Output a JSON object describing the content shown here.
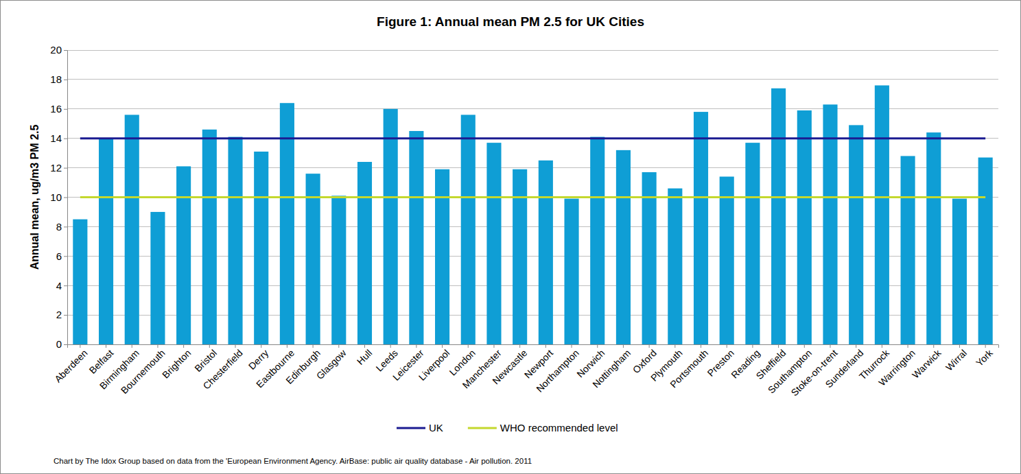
{
  "chart_data": {
    "type": "bar",
    "title": "Figure 1: Annual mean PM 2.5 for UK Cities",
    "y_label": "Annual mean, ug/m3 PM 2.5",
    "source": "Chart by The Idox Group based on data from the 'European Environment Agency. AirBase: public air quality database - Air pollution. 2011",
    "categories": [
      "Aberdeen",
      "Belfast",
      "Birmingham",
      "Bournemouth",
      "Brighton",
      "Bristol",
      "Chesterfield",
      "Derry",
      "Eastbourne",
      "Edinburgh",
      "Glasgow",
      "Hull",
      "Leeds",
      "Leicester",
      "Liverpool",
      "London",
      "Manchester",
      "Newcastle",
      "Newport",
      "Northampton",
      "Norwich",
      "Nottingham",
      "Oxford",
      "Plymouth",
      "Portsmouth",
      "Preston",
      "Reading",
      "Sheffield",
      "Southampton",
      "Stoke-on-trent",
      "Sunderland",
      "Thurrock",
      "Warrington",
      "Warwick",
      "Wirral",
      "York"
    ],
    "values": [
      8.5,
      14.0,
      15.6,
      9.0,
      12.1,
      14.6,
      14.1,
      13.1,
      16.4,
      11.6,
      10.1,
      12.4,
      16.0,
      14.5,
      11.9,
      15.6,
      13.7,
      11.9,
      12.5,
      9.9,
      14.1,
      13.2,
      11.7,
      10.6,
      15.8,
      11.4,
      13.7,
      17.4,
      15.9,
      16.3,
      14.9,
      17.6,
      12.8,
      14.4,
      9.9,
      12.7
    ],
    "color": "#0f9ed5",
    "series": [
      {
        "name": "UK",
        "type": "line",
        "color": "#1b1b91",
        "values": [
          14,
          14,
          14,
          14,
          14,
          14,
          14,
          14,
          14,
          14,
          14,
          14,
          14,
          14,
          14,
          14,
          14,
          14,
          14,
          14,
          14,
          14,
          14,
          14,
          14,
          14,
          14,
          14,
          14,
          14,
          14,
          14,
          14,
          14,
          14,
          14
        ]
      },
      {
        "name": "WHO recommended level",
        "type": "line",
        "color": "#c4d82e",
        "values": [
          10,
          10,
          10,
          10,
          10,
          10,
          10,
          10,
          10,
          10,
          10,
          10,
          10,
          10,
          10,
          10,
          10,
          10,
          10,
          10,
          10,
          10,
          10,
          10,
          10,
          10,
          10,
          10,
          10,
          10,
          10,
          10,
          10,
          10,
          10,
          10
        ]
      }
    ],
    "ylim": [
      0,
      20
    ],
    "yticks": [
      0,
      2,
      4,
      6,
      8,
      10,
      12,
      14,
      16,
      18,
      20
    ],
    "grid": true,
    "legend": "bottom"
  }
}
